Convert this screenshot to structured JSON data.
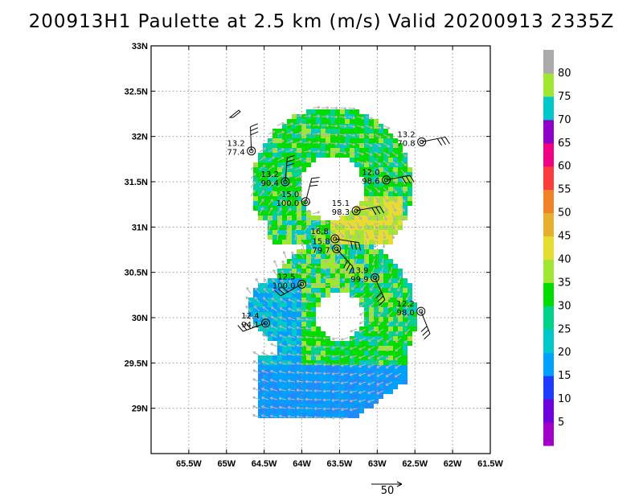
{
  "chart_data": {
    "type": "heatmap",
    "title": "200913H1 Paulette at 2.5 km (m/s) Valid 20200913 2335Z",
    "x_range": [
      -66.0,
      -61.5
    ],
    "y_range": [
      28.5,
      33.0
    ],
    "x_ticks": [
      "65.5W",
      "65W",
      "64.5W",
      "64W",
      "63.5W",
      "63W",
      "62.5W",
      "62W",
      "61.5W"
    ],
    "y_ticks": [
      "33N",
      "32.5N",
      "32N",
      "31.5N",
      "31N",
      "30.5N",
      "30N",
      "29.5N",
      "29N"
    ],
    "grid": true,
    "colorbar": {
      "labels": [
        "5",
        "10",
        "15",
        "20",
        "25",
        "30",
        "35",
        "40",
        "45",
        "50",
        "55",
        "60",
        "65",
        "70",
        "75",
        "80"
      ],
      "colors": [
        "#a000c8",
        "#6e00dc",
        "#1e3cff",
        "#00a0ff",
        "#00c8c8",
        "#00d28c",
        "#00dc00",
        "#a0e632",
        "#e6dc32",
        "#e6af2d",
        "#f08228",
        "#fa3c3c",
        "#f00082",
        "#8c00c8",
        "#00c8c8",
        "#a0e632",
        "#aaaaaa"
      ]
    },
    "vector_scale_label": "50",
    "observations": [
      {
        "lon": -64.67,
        "lat": 31.84,
        "top": "13.2",
        "bottom": "77.4"
      },
      {
        "lon": -64.22,
        "lat": 31.5,
        "top": "13.2",
        "bottom": "90.4"
      },
      {
        "lon": -63.95,
        "lat": 31.28,
        "top": "15.0",
        "bottom": "100.0"
      },
      {
        "lon": -62.41,
        "lat": 31.94,
        "top": "13.2",
        "bottom": "70.8"
      },
      {
        "lon": -62.88,
        "lat": 31.52,
        "top": "12.0",
        "bottom": "98.6"
      },
      {
        "lon": -63.28,
        "lat": 31.18,
        "top": "15.1",
        "bottom": "98.3"
      },
      {
        "lon": -63.56,
        "lat": 30.87,
        "top": "16.8",
        "bottom": ""
      },
      {
        "lon": -63.54,
        "lat": 30.76,
        "top": "15.8",
        "bottom": "79.7"
      },
      {
        "lon": -64.0,
        "lat": 30.37,
        "top": "12.5",
        "bottom": "100.0"
      },
      {
        "lon": -63.03,
        "lat": 30.44,
        "top": "13.9",
        "bottom": "99.9"
      },
      {
        "lon": -62.42,
        "lat": 30.07,
        "top": "12.2",
        "bottom": "98.0"
      },
      {
        "lon": -64.48,
        "lat": 29.94,
        "top": "12.4",
        "bottom": "94.1"
      }
    ]
  }
}
